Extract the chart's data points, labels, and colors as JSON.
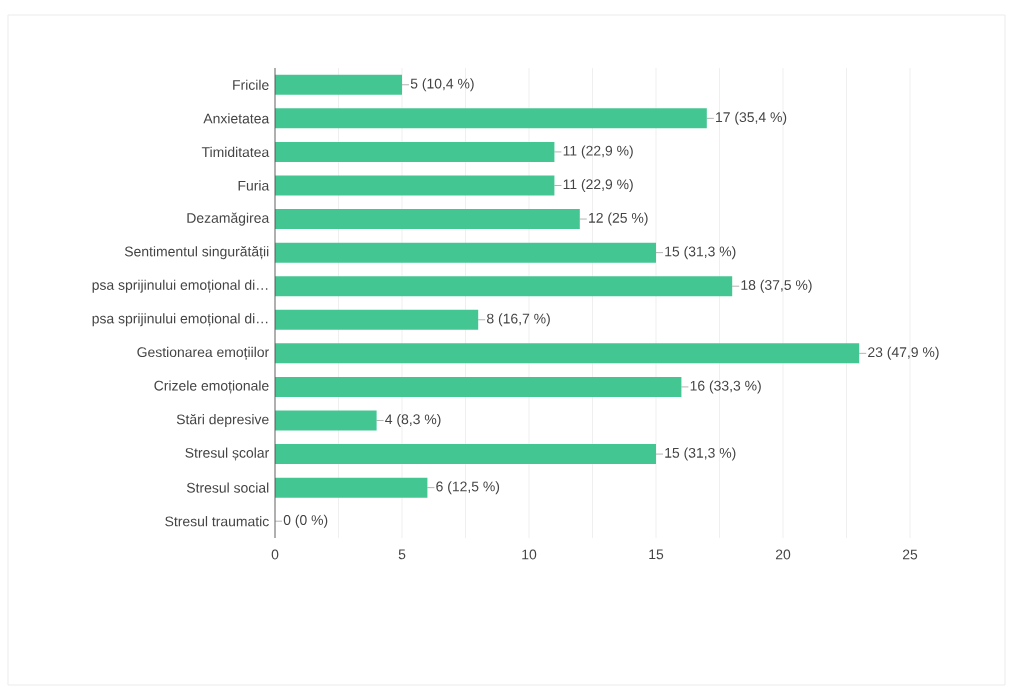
{
  "chart_data": {
    "type": "bar",
    "orientation": "horizontal",
    "color": "#44c693",
    "categories": [
      "Fricile",
      "Anxietatea",
      "Timiditatea",
      "Furia",
      "Dezamăgirea",
      "Sentimentul singurătății",
      "psa sprijinului emoțional di…",
      "psa sprijinului emoțional di…",
      "Gestionarea emoțiilor",
      "Crizele emoționale",
      "Stări depresive",
      "Stresul școlar",
      "Stresul social",
      "Stresul traumatic"
    ],
    "values": [
      5,
      17,
      11,
      11,
      12,
      15,
      18,
      8,
      23,
      16,
      4,
      15,
      6,
      0
    ],
    "value_labels": [
      "5 (10,4 %)",
      "17 (35,4 %)",
      "11 (22,9 %)",
      "11 (22,9 %)",
      "12 (25 %)",
      "15 (31,3 %)",
      "18 (37,5 %)",
      "8 (16,7 %)",
      "23 (47,9 %)",
      "16 (33,3 %)",
      "4 (8,3 %)",
      "15 (31,3 %)",
      "6 (12,5 %)",
      "0 (0 %)"
    ],
    "xlim": [
      0,
      25
    ],
    "xticks": [
      0,
      {
        "value": 2.5,
        "label": null
      },
      5,
      {
        "value": 7.5,
        "label": null
      },
      10,
      {
        "value": 12.5,
        "label": null
      },
      15,
      {
        "value": 17.5,
        "label": null
      },
      20,
      {
        "value": 22.5,
        "label": null
      },
      25
    ],
    "grid": "x"
  }
}
